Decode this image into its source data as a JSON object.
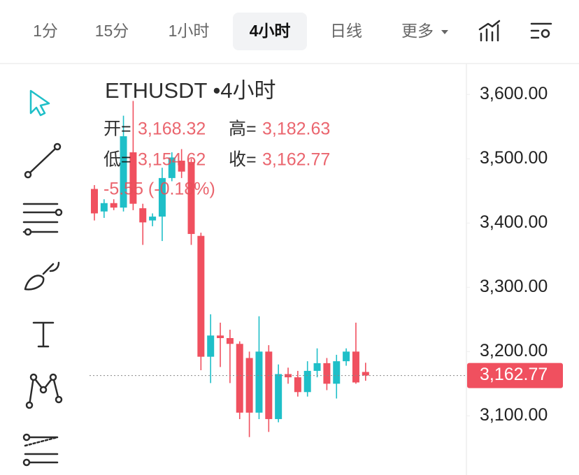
{
  "tabs": [
    "1分",
    "15分",
    "1小时",
    "4小时",
    "日线",
    "更多"
  ],
  "selected_tab": 3,
  "chart_data": {
    "type": "candlestick",
    "title": "ETHUSDT •4小时",
    "up_color": "#1fbfc8",
    "down_color": "#f0505f",
    "open": [
      3453,
      3418,
      3431,
      3424,
      3510,
      3423,
      3404,
      3410,
      3470,
      3497,
      3495,
      3380,
      3192,
      3225,
      3221,
      3212,
      3190,
      3105,
      3200,
      3095,
      3165,
      3160,
      3137,
      3170,
      3182,
      3150,
      3185,
      3200,
      3168.32
    ],
    "high": [
      3459,
      3437,
      3437,
      3567,
      3590,
      3430,
      3415,
      3486,
      3510,
      3515,
      3500,
      3385,
      3258,
      3245,
      3234,
      3216,
      3200,
      3255,
      3210,
      3180,
      3175,
      3170,
      3185,
      3205,
      3190,
      3195,
      3205,
      3245,
      3182.63
    ],
    "low": [
      3404,
      3408,
      3420,
      3418,
      3420,
      3366,
      3395,
      3372,
      3465,
      3470,
      3366,
      3171,
      3151,
      3176,
      3151,
      3095,
      3067,
      3095,
      3075,
      3090,
      3150,
      3130,
      3130,
      3160,
      3140,
      3127,
      3178,
      3150,
      3154.62
    ],
    "close": [
      3415,
      3431,
      3424,
      3535,
      3430,
      3401,
      3410,
      3470,
      3502,
      3480,
      3383,
      3192,
      3225,
      3221,
      3212,
      3105,
      3105,
      3200,
      3095,
      3165,
      3160,
      3137,
      3170,
      3182,
      3150,
      3185,
      3200,
      3152,
      3162.77
    ],
    "ylim": [
      3008,
      3647
    ],
    "yticks": [
      {
        "value": 3600,
        "label": "3,600.00"
      },
      {
        "value": 3500,
        "label": "3,500.00"
      },
      {
        "value": 3400,
        "label": "3,400.00"
      },
      {
        "value": 3300,
        "label": "3,300.00"
      },
      {
        "value": 3200,
        "label": "3,200.00"
      },
      {
        "value": 3100,
        "label": "3,100.00"
      }
    ],
    "last_price": {
      "value": 3162.77,
      "label": "3,162.77"
    },
    "ohlc_legend": [
      {
        "label": "开=",
        "value": "3,168.32"
      },
      {
        "label": "高=",
        "value": "3,182.63"
      },
      {
        "label": "低=",
        "value": "3,154.62"
      },
      {
        "label": "收=",
        "value": "3,162.77"
      }
    ],
    "change": "-5.55 (-0.18%)"
  }
}
